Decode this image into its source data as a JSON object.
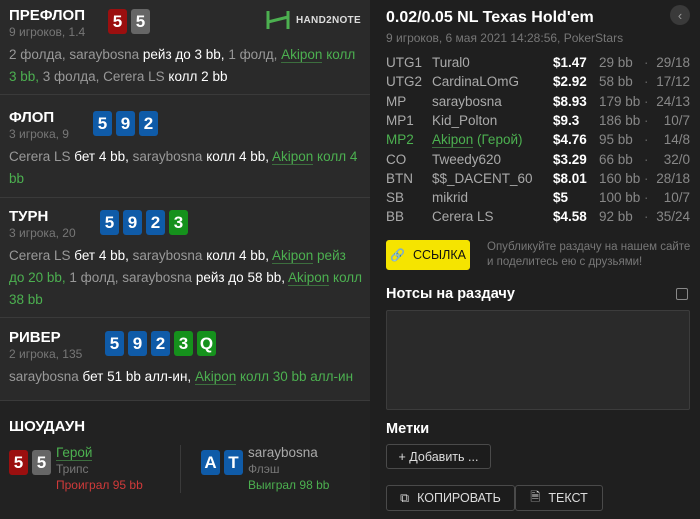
{
  "brand": {
    "logo_text": "HAND2NOTE",
    "accent": "#4cb050"
  },
  "streets": [
    {
      "title": "ПРЕФЛОП",
      "sub": "9 игроков, 1.4",
      "cards": [
        {
          "r": "5",
          "c": "red"
        },
        {
          "r": "5",
          "c": "gray"
        }
      ],
      "actions": [
        {
          "t": "2 фолда, ",
          "c": ""
        },
        {
          "t": "saraybosna ",
          "c": ""
        },
        {
          "t": "рейз до 3 bb,",
          "c": "w"
        },
        {
          "t": " 1 фолд, ",
          "c": ""
        },
        {
          "t": "Akipon",
          "c": "hn"
        },
        {
          "t": " колл 3 bb,",
          "c": "h"
        },
        {
          "t": " 3 фолда, Cerera LS ",
          "c": ""
        },
        {
          "t": "колл 2 bb",
          "c": "w"
        }
      ]
    },
    {
      "title": "ФЛОП",
      "sub": "3 игрока, 9",
      "cards": [
        {
          "r": "5",
          "c": "blue"
        },
        {
          "r": "9",
          "c": "blue"
        },
        {
          "r": "2",
          "c": "blue"
        }
      ],
      "actions": [
        {
          "t": "Cerera LS ",
          "c": ""
        },
        {
          "t": "бет 4 bb,",
          "c": "w"
        },
        {
          "t": " saraybosna ",
          "c": ""
        },
        {
          "t": "колл 4 bb,",
          "c": "w"
        },
        {
          "t": " ",
          "c": ""
        },
        {
          "t": "Akipon",
          "c": "hn"
        },
        {
          "t": " колл 4 bb",
          "c": "h"
        }
      ]
    },
    {
      "title": "ТУРН",
      "sub": "3 игрока, 20",
      "cards": [
        {
          "r": "5",
          "c": "blue"
        },
        {
          "r": "9",
          "c": "blue"
        },
        {
          "r": "2",
          "c": "blue"
        },
        {
          "r": "3",
          "c": "green"
        }
      ],
      "actions": [
        {
          "t": "Cerera LS ",
          "c": ""
        },
        {
          "t": "бет 4 bb,",
          "c": "w"
        },
        {
          "t": " saraybosna ",
          "c": ""
        },
        {
          "t": "колл 4 bb,",
          "c": "w"
        },
        {
          "t": " ",
          "c": ""
        },
        {
          "t": "Akipon",
          "c": "hn"
        },
        {
          "t": " рейз до 20 bb,",
          "c": "h"
        },
        {
          "t": " 1 фолд, saraybosna ",
          "c": ""
        },
        {
          "t": "рейз до 58 bb,",
          "c": "w"
        },
        {
          "t": " ",
          "c": ""
        },
        {
          "t": "Akipon",
          "c": "hn"
        },
        {
          "t": " колл 38 bb",
          "c": "h"
        }
      ]
    },
    {
      "title": "РИВЕР",
      "sub": "2 игрока, 135",
      "cards": [
        {
          "r": "5",
          "c": "blue"
        },
        {
          "r": "9",
          "c": "blue"
        },
        {
          "r": "2",
          "c": "blue"
        },
        {
          "r": "3",
          "c": "green"
        },
        {
          "r": "Q",
          "c": "green"
        }
      ],
      "actions": [
        {
          "t": "saraybosna ",
          "c": ""
        },
        {
          "t": "бет 51 bb алл-ин,",
          "c": "w"
        },
        {
          "t": " ",
          "c": ""
        },
        {
          "t": "Akipon",
          "c": "hn"
        },
        {
          "t": " колл 30 bb алл-ин",
          "c": "h"
        }
      ]
    }
  ],
  "showdown": {
    "title": "ШОУДАУН",
    "players": [
      {
        "name": "Герой",
        "hand": "Трипс",
        "result": "Проиграл 95 bb",
        "result_color": "#d03a3a",
        "cards": [
          {
            "r": "5",
            "c": "red"
          },
          {
            "r": "5",
            "c": "gray"
          }
        ]
      },
      {
        "name": "saraybosna",
        "hand": "Флэш",
        "result": "Выиграл 98 bb",
        "result_color": "#4cb050",
        "cards": [
          {
            "r": "A",
            "c": "blue"
          },
          {
            "r": "T",
            "c": "blue"
          }
        ]
      }
    ]
  },
  "game": {
    "title": "0.02/0.05 NL Texas Hold'em",
    "sub": "9 игроков, 6 мая 2021 14:28:56, PokerStars"
  },
  "players": [
    {
      "pos": "UTG1",
      "name": "Tural0",
      "stack": "$1.47",
      "bb": "29 bb",
      "stats": "29/18"
    },
    {
      "pos": "UTG2",
      "name": "CardinaLOmG",
      "stack": "$2.92",
      "bb": "58 bb",
      "stats": "17/12"
    },
    {
      "pos": "MP",
      "name": "saraybosna",
      "stack": "$8.93",
      "bb": "179 bb",
      "stats": "24/13"
    },
    {
      "pos": "MP1",
      "name": "Kid_Polton",
      "stack": "$9.3",
      "bb": "186 bb",
      "stats": "10/7"
    },
    {
      "pos": "MP2",
      "name": "Akipon",
      "hero": " (Герой)",
      "stack": "$4.76",
      "bb": "95 bb",
      "stats": "14/8"
    },
    {
      "pos": "CO",
      "name": "Tweedy620",
      "stack": "$3.29",
      "bb": "66 bb",
      "stats": "32/0"
    },
    {
      "pos": "BTN",
      "name": "$$_DACENT_60",
      "stack": "$8.01",
      "bb": "160 bb",
      "stats": "28/18"
    },
    {
      "pos": "SB",
      "name": "mikrid",
      "stack": "$5",
      "bb": "100 bb",
      "stats": "10/7"
    },
    {
      "pos": "BB",
      "name": "Cerera LS",
      "stack": "$4.58",
      "bb": "92 bb",
      "stats": "35/24"
    }
  ],
  "share": {
    "button": "ССЫЛКА",
    "hint": "Опубликуйте раздачу на нашем сайте и поделитесь ею с друзьями!"
  },
  "notes": {
    "title": "Нотсы на раздачу",
    "value": ""
  },
  "tags": {
    "title": "Метки",
    "add": "+ Добавить ..."
  },
  "footer": {
    "copy": "КОПИРОВАТЬ",
    "text": "ТЕКСТ"
  }
}
